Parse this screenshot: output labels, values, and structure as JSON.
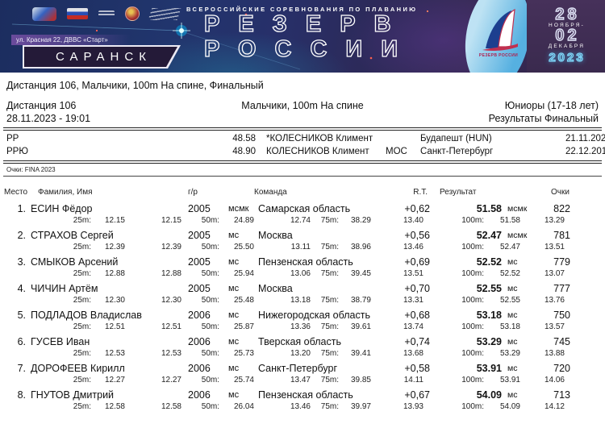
{
  "banner": {
    "competition_label": "ВСЕРОССИЙСКИЕ СОРЕВНОВАНИЯ ПО ПЛАВАНИЮ",
    "title_line1": "РЕЗЕРВ",
    "title_line2": "РОССИИ",
    "city": "САРАНСК",
    "venue": "ул. Красная 22, ДВВС «Старт»",
    "logo_text": "РЕЗЕРВ РОССИИ",
    "dates": {
      "day_from": "28",
      "month_from": "НОЯБРЯ-",
      "day_to": "02",
      "month_to": "ДЕКАБРЯ",
      "year": "2023"
    }
  },
  "page_title": "Дистанция 106, Мальчики, 100m На спине, Финальный",
  "event_header": {
    "distance": "Дистанция 106",
    "event": "Мальчики, 100m На спине",
    "category": "Юниоры (17-18 лет)",
    "datetime": "28.11.2023 - 19:01",
    "stage": "Результаты Финальный"
  },
  "records": [
    {
      "code": "PP",
      "time": "48.58",
      "name": "*КОЛЕСНИКОВ Климент",
      "org": "",
      "place": "Будапешт (HUN)",
      "date": "21.11.2020"
    },
    {
      "code": "РРЮ",
      "time": "48.90",
      "name": "КОЛЕСНИКОВ Климент",
      "org": "МОС",
      "place": "Санкт-Петербург",
      "date": "22.12.2017"
    }
  ],
  "points_note": "Очки: FINA 2023",
  "results_table": {
    "headers": {
      "place": "Место",
      "name": "Фамилия, Имя",
      "year": "г/р",
      "team": "Команда",
      "rt": "R.T.",
      "result": "Результат",
      "points": "Очки"
    },
    "rows": [
      {
        "place": "1.",
        "name": "ЕСИН Фёдор",
        "year": "2005",
        "rank": "мсмк",
        "team": "Самарская область",
        "rt": "+0,62",
        "result": "51.58",
        "result_rank": "мсмк",
        "points": "822",
        "splits": [
          "25m:",
          "12.15",
          "12.15",
          "50m:",
          "24.89",
          "12.74",
          "75m:",
          "38.29",
          "13.40",
          "100m:",
          "51.58",
          "13.29"
        ]
      },
      {
        "place": "2.",
        "name": "СТРАХОВ Сергей",
        "year": "2005",
        "rank": "мс",
        "team": "Москва",
        "rt": "+0,56",
        "result": "52.47",
        "result_rank": "мсмк",
        "points": "781",
        "splits": [
          "25m:",
          "12.39",
          "12.39",
          "50m:",
          "25.50",
          "13.11",
          "75m:",
          "38.96",
          "13.46",
          "100m:",
          "52.47",
          "13.51"
        ]
      },
      {
        "place": "3.",
        "name": "СМЫКОВ Арсений",
        "year": "2005",
        "rank": "мс",
        "team": "Пензенская область",
        "rt": "+0,69",
        "result": "52.52",
        "result_rank": "мс",
        "points": "779",
        "splits": [
          "25m:",
          "12.88",
          "12.88",
          "50m:",
          "25.94",
          "13.06",
          "75m:",
          "39.45",
          "13.51",
          "100m:",
          "52.52",
          "13.07"
        ]
      },
      {
        "place": "4.",
        "name": "ЧИЧИН Артём",
        "year": "2005",
        "rank": "мс",
        "team": "Москва",
        "rt": "+0,70",
        "result": "52.55",
        "result_rank": "мс",
        "points": "777",
        "splits": [
          "25m:",
          "12.30",
          "12.30",
          "50m:",
          "25.48",
          "13.18",
          "75m:",
          "38.79",
          "13.31",
          "100m:",
          "52.55",
          "13.76"
        ]
      },
      {
        "place": "5.",
        "name": "ПОДЛАДОВ Владислав",
        "year": "2006",
        "rank": "мс",
        "team": "Нижегородская область",
        "rt": "+0,68",
        "result": "53.18",
        "result_rank": "мс",
        "points": "750",
        "splits": [
          "25m:",
          "12.51",
          "12.51",
          "50m:",
          "25.87",
          "13.36",
          "75m:",
          "39.61",
          "13.74",
          "100m:",
          "53.18",
          "13.57"
        ]
      },
      {
        "place": "6.",
        "name": "ГУСЕВ Иван",
        "year": "2006",
        "rank": "мс",
        "team": "Тверская область",
        "rt": "+0,74",
        "result": "53.29",
        "result_rank": "мс",
        "points": "745",
        "splits": [
          "25m:",
          "12.53",
          "12.53",
          "50m:",
          "25.73",
          "13.20",
          "75m:",
          "39.41",
          "13.68",
          "100m:",
          "53.29",
          "13.88"
        ]
      },
      {
        "place": "7.",
        "name": "ДОРОФЕЕВ Кирилл",
        "year": "2006",
        "rank": "мс",
        "team": "Санкт-Петербург",
        "rt": "+0,58",
        "result": "53.91",
        "result_rank": "мс",
        "points": "720",
        "splits": [
          "25m:",
          "12.27",
          "12.27",
          "50m:",
          "25.74",
          "13.47",
          "75m:",
          "39.85",
          "14.11",
          "100m:",
          "53.91",
          "14.06"
        ]
      },
      {
        "place": "8.",
        "name": "ГНУТОВ Дмитрий",
        "year": "2006",
        "rank": "мс",
        "team": "Пензенская область",
        "rt": "+0,67",
        "result": "54.09",
        "result_rank": "мс",
        "points": "713",
        "splits": [
          "25m:",
          "12.58",
          "12.58",
          "50m:",
          "26.04",
          "13.46",
          "75m:",
          "39.97",
          "13.93",
          "100m:",
          "54.09",
          "14.12"
        ]
      }
    ]
  }
}
